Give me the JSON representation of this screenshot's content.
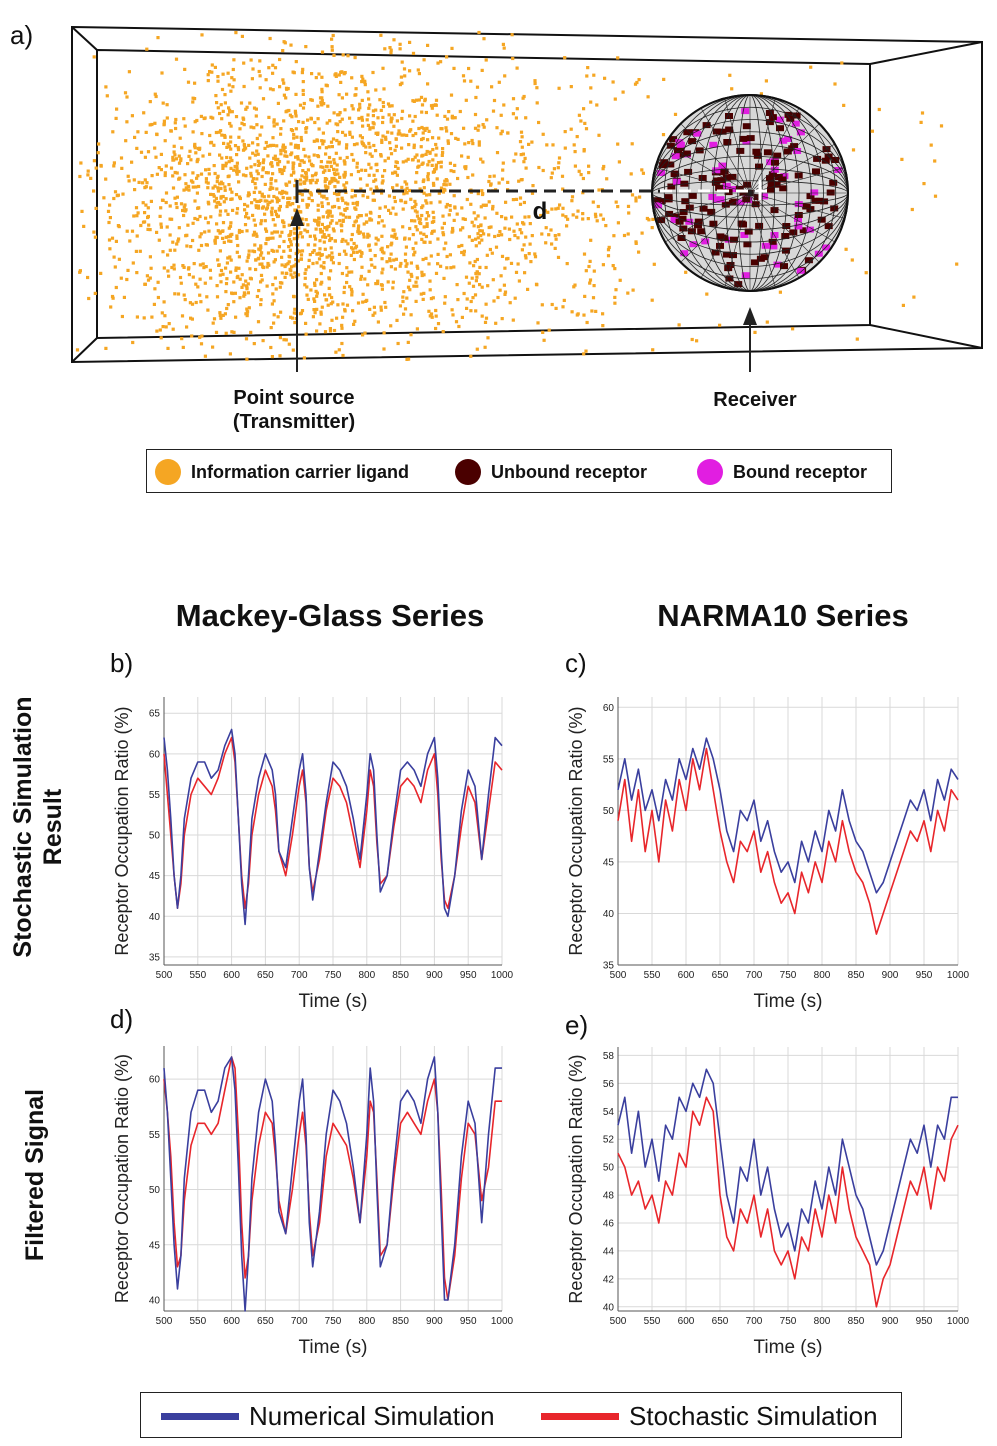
{
  "panel_a": {
    "letter": "a)",
    "distance_label": "d",
    "transmitter_label_line1": "Point source",
    "transmitter_label_line2": "(Transmitter)",
    "receiver_label": "Receiver",
    "legend": [
      {
        "label": "Information carrier ligand",
        "color": "#f5a623"
      },
      {
        "label": "Unbound receptor",
        "color": "#4a0000"
      },
      {
        "label": "Bound receptor",
        "color": "#e11ee1"
      }
    ]
  },
  "column_titles": [
    "Mackey-Glass Series",
    "NARMA10 Series"
  ],
  "row_titles": [
    "Stochastic Simulation Result",
    "Filtered Signal"
  ],
  "legend": [
    {
      "label": "Numerical Simulation",
      "color": "#3a3f9e"
    },
    {
      "label": "Stochastic Simulation",
      "color": "#e8262b"
    }
  ],
  "chart_data": [
    {
      "id": "b",
      "letter": "b)",
      "type": "line",
      "xlabel": "Time (s)",
      "ylabel": "Receptor Occupation Ratio (%)",
      "xlim": [
        500,
        1000
      ],
      "ylim": [
        34,
        67
      ],
      "xticks": [
        500,
        550,
        600,
        650,
        700,
        750,
        800,
        850,
        900,
        950,
        1000
      ],
      "yticks": [
        35,
        40,
        45,
        50,
        55,
        60,
        65
      ],
      "grid": true,
      "series": [
        {
          "name": "Numerical Simulation",
          "x": [
            500,
            505,
            510,
            515,
            520,
            525,
            530,
            540,
            550,
            560,
            570,
            580,
            590,
            600,
            605,
            610,
            615,
            620,
            625,
            630,
            640,
            650,
            660,
            665,
            670,
            680,
            690,
            700,
            705,
            710,
            715,
            720,
            730,
            740,
            750,
            760,
            770,
            780,
            790,
            800,
            805,
            810,
            815,
            820,
            830,
            840,
            850,
            860,
            870,
            880,
            890,
            900,
            905,
            910,
            915,
            920,
            930,
            940,
            950,
            960,
            970,
            980,
            990,
            1000
          ],
          "y": [
            62,
            58,
            52,
            45,
            41,
            45,
            52,
            57,
            59,
            59,
            57,
            58,
            61,
            63,
            60,
            52,
            44,
            39,
            45,
            52,
            57,
            60,
            58,
            55,
            48,
            46,
            52,
            58,
            60,
            55,
            46,
            42,
            48,
            54,
            59,
            58,
            56,
            52,
            47,
            55,
            60,
            58,
            50,
            43,
            45,
            52,
            58,
            59,
            58,
            56,
            60,
            62,
            57,
            48,
            41,
            40,
            45,
            53,
            58,
            56,
            47,
            55,
            62,
            61
          ]
        },
        {
          "name": "Stochastic Simulation",
          "x": [
            500,
            505,
            510,
            515,
            520,
            525,
            530,
            540,
            550,
            560,
            570,
            580,
            590,
            600,
            605,
            610,
            615,
            620,
            625,
            630,
            640,
            650,
            660,
            665,
            670,
            680,
            690,
            700,
            705,
            710,
            715,
            720,
            730,
            740,
            750,
            760,
            770,
            780,
            790,
            800,
            805,
            810,
            815,
            820,
            830,
            840,
            850,
            860,
            870,
            880,
            890,
            900,
            905,
            910,
            915,
            920,
            930,
            940,
            950,
            960,
            970,
            980,
            990,
            1000
          ],
          "y": [
            60,
            55,
            50,
            45,
            41,
            44,
            50,
            55,
            57,
            56,
            55,
            57,
            60,
            62,
            59,
            52,
            45,
            41,
            44,
            50,
            55,
            58,
            56,
            53,
            48,
            45,
            50,
            56,
            58,
            54,
            46,
            43,
            47,
            53,
            57,
            56,
            54,
            50,
            46,
            53,
            58,
            56,
            49,
            44,
            45,
            51,
            56,
            57,
            56,
            54,
            58,
            60,
            55,
            47,
            42,
            41,
            45,
            51,
            56,
            54,
            47,
            53,
            59,
            58
          ]
        }
      ]
    },
    {
      "id": "c",
      "letter": "c)",
      "type": "line",
      "xlabel": "Time (s)",
      "ylabel": "Receptor Occupation Ratio (%)",
      "xlim": [
        500,
        1000
      ],
      "ylim": [
        35,
        61
      ],
      "xticks": [
        500,
        550,
        600,
        650,
        700,
        750,
        800,
        850,
        900,
        950,
        1000
      ],
      "yticks": [
        35,
        40,
        45,
        50,
        55,
        60
      ],
      "grid": true,
      "series": [
        {
          "name": "Numerical Simulation",
          "x": [
            500,
            510,
            520,
            530,
            540,
            550,
            560,
            570,
            580,
            590,
            600,
            610,
            620,
            630,
            640,
            650,
            660,
            670,
            680,
            690,
            700,
            710,
            720,
            730,
            740,
            750,
            760,
            770,
            780,
            790,
            800,
            810,
            820,
            830,
            840,
            850,
            860,
            870,
            880,
            890,
            900,
            910,
            920,
            930,
            940,
            950,
            960,
            970,
            980,
            990,
            1000
          ],
          "y": [
            52,
            55,
            51,
            54,
            50,
            52,
            49,
            53,
            51,
            55,
            53,
            56,
            54,
            57,
            55,
            52,
            48,
            46,
            50,
            49,
            51,
            47,
            49,
            46,
            44,
            45,
            43,
            47,
            45,
            48,
            46,
            50,
            48,
            52,
            49,
            47,
            46,
            44,
            42,
            43,
            45,
            47,
            49,
            51,
            50,
            52,
            49,
            53,
            51,
            54,
            53
          ]
        },
        {
          "name": "Stochastic Simulation",
          "x": [
            500,
            510,
            520,
            530,
            540,
            550,
            560,
            570,
            580,
            590,
            600,
            610,
            620,
            630,
            640,
            650,
            660,
            670,
            680,
            690,
            700,
            710,
            720,
            730,
            740,
            750,
            760,
            770,
            780,
            790,
            800,
            810,
            820,
            830,
            840,
            850,
            860,
            870,
            880,
            890,
            900,
            910,
            920,
            930,
            940,
            950,
            960,
            970,
            980,
            990,
            1000
          ],
          "y": [
            49,
            53,
            47,
            52,
            46,
            50,
            45,
            51,
            48,
            53,
            50,
            55,
            52,
            56,
            52,
            48,
            45,
            43,
            47,
            46,
            48,
            44,
            46,
            43,
            41,
            42,
            40,
            44,
            42,
            45,
            43,
            47,
            45,
            49,
            46,
            44,
            43,
            41,
            38,
            40,
            42,
            44,
            46,
            48,
            47,
            49,
            46,
            50,
            48,
            52,
            51
          ]
        }
      ]
    },
    {
      "id": "d",
      "letter": "d)",
      "type": "line",
      "xlabel": "Time (s)",
      "ylabel": "Receptor Occupation Ratio (%)",
      "xlim": [
        500,
        1000
      ],
      "ylim": [
        39,
        63
      ],
      "xticks": [
        500,
        550,
        600,
        650,
        700,
        750,
        800,
        850,
        900,
        950,
        1000
      ],
      "yticks": [
        40,
        45,
        50,
        55,
        60
      ],
      "grid": true,
      "series": [
        {
          "name": "Numerical Simulation",
          "x": [
            500,
            505,
            510,
            515,
            520,
            525,
            530,
            540,
            550,
            560,
            570,
            580,
            590,
            600,
            605,
            610,
            615,
            620,
            625,
            630,
            640,
            650,
            660,
            665,
            670,
            680,
            690,
            700,
            705,
            710,
            715,
            720,
            730,
            740,
            750,
            760,
            770,
            780,
            790,
            800,
            805,
            810,
            815,
            820,
            830,
            840,
            850,
            860,
            870,
            880,
            890,
            900,
            905,
            910,
            915,
            920,
            930,
            940,
            950,
            960,
            970,
            980,
            990,
            1000
          ],
          "y": [
            61,
            57,
            51,
            45,
            41,
            44,
            51,
            57,
            59,
            59,
            57,
            58,
            61,
            62,
            59,
            52,
            44,
            39,
            44,
            51,
            57,
            60,
            58,
            54,
            48,
            46,
            52,
            58,
            60,
            55,
            47,
            43,
            48,
            55,
            59,
            58,
            56,
            52,
            47,
            55,
            61,
            58,
            50,
            43,
            45,
            52,
            58,
            59,
            58,
            56,
            60,
            62,
            57,
            48,
            40,
            40,
            45,
            53,
            58,
            56,
            47,
            55,
            61,
            61
          ]
        },
        {
          "name": "Stochastic Simulation",
          "x": [
            500,
            505,
            510,
            515,
            520,
            525,
            530,
            540,
            550,
            560,
            570,
            580,
            590,
            600,
            605,
            610,
            615,
            620,
            625,
            630,
            640,
            650,
            660,
            665,
            670,
            680,
            690,
            700,
            705,
            710,
            715,
            720,
            730,
            740,
            750,
            760,
            770,
            780,
            790,
            800,
            805,
            810,
            815,
            820,
            830,
            840,
            850,
            860,
            870,
            880,
            890,
            900,
            905,
            910,
            915,
            920,
            930,
            940,
            950,
            960,
            970,
            980,
            990,
            1000
          ],
          "y": [
            60,
            57,
            53,
            47,
            43,
            44,
            49,
            54,
            56,
            56,
            55,
            56,
            59,
            62,
            61,
            55,
            47,
            42,
            44,
            49,
            54,
            57,
            56,
            53,
            49,
            46,
            50,
            55,
            57,
            54,
            48,
            44,
            47,
            53,
            56,
            55,
            54,
            51,
            47,
            53,
            58,
            57,
            51,
            44,
            45,
            51,
            56,
            57,
            56,
            55,
            58,
            60,
            57,
            50,
            42,
            40,
            44,
            51,
            56,
            55,
            49,
            52,
            58,
            58
          ]
        }
      ]
    },
    {
      "id": "e",
      "letter": "e)",
      "type": "line",
      "xlabel": "Time (s)",
      "ylabel": "Receptor Occupation Ratio (%)",
      "xlim": [
        500,
        1000
      ],
      "ylim": [
        39.7,
        58.6
      ],
      "xticks": [
        500,
        550,
        600,
        650,
        700,
        750,
        800,
        850,
        900,
        950,
        1000
      ],
      "yticks": [
        40,
        42,
        44,
        46,
        48,
        50,
        52,
        54,
        56,
        58
      ],
      "grid": true,
      "series": [
        {
          "name": "Numerical Simulation",
          "x": [
            500,
            510,
            520,
            530,
            540,
            550,
            560,
            570,
            580,
            590,
            600,
            610,
            620,
            630,
            640,
            650,
            660,
            670,
            680,
            690,
            700,
            710,
            720,
            730,
            740,
            750,
            760,
            770,
            780,
            790,
            800,
            810,
            820,
            830,
            840,
            850,
            860,
            870,
            880,
            890,
            900,
            910,
            920,
            930,
            940,
            950,
            960,
            970,
            980,
            990,
            1000
          ],
          "y": [
            53,
            55,
            51,
            54,
            50,
            52,
            49,
            53,
            52,
            55,
            54,
            56,
            55,
            57,
            56,
            52,
            48,
            46,
            50,
            49,
            52,
            48,
            50,
            47,
            45,
            46,
            44,
            47,
            46,
            49,
            47,
            50,
            48,
            52,
            50,
            48,
            47,
            45,
            43,
            44,
            46,
            48,
            50,
            52,
            51,
            53,
            50,
            53,
            52,
            55,
            55
          ]
        },
        {
          "name": "Stochastic Simulation",
          "x": [
            500,
            510,
            520,
            530,
            540,
            550,
            560,
            570,
            580,
            590,
            600,
            610,
            620,
            630,
            640,
            650,
            660,
            670,
            680,
            690,
            700,
            710,
            720,
            730,
            740,
            750,
            760,
            770,
            780,
            790,
            800,
            810,
            820,
            830,
            840,
            850,
            860,
            870,
            880,
            890,
            900,
            910,
            920,
            930,
            940,
            950,
            960,
            970,
            980,
            990,
            1000
          ],
          "y": [
            51,
            50,
            48,
            49,
            47,
            48,
            46,
            49,
            48,
            51,
            50,
            54,
            53,
            55,
            54,
            48,
            45,
            44,
            47,
            46,
            48,
            45,
            47,
            44,
            43,
            44,
            42,
            45,
            44,
            47,
            45,
            48,
            46,
            50,
            47,
            45,
            44,
            43,
            40,
            42,
            43,
            45,
            47,
            49,
            48,
            50,
            47,
            50,
            49,
            52,
            53
          ]
        }
      ]
    }
  ]
}
